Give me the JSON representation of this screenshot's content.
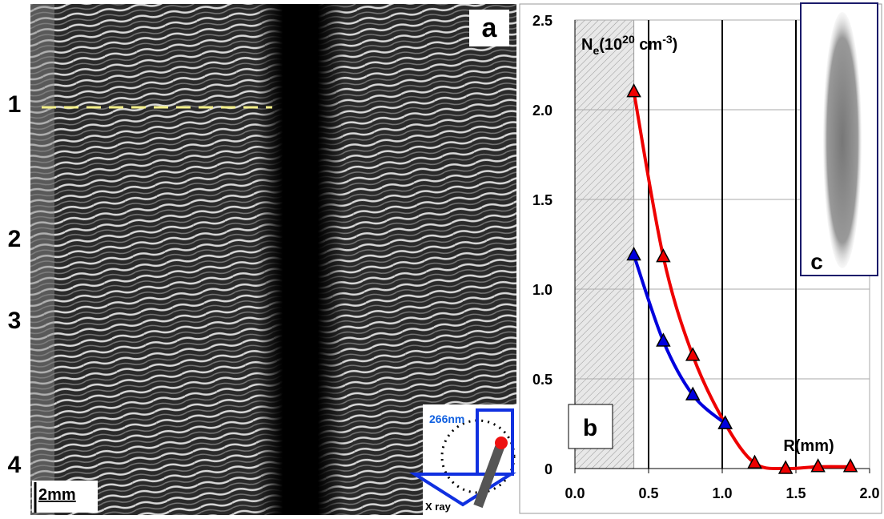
{
  "panel_a": {
    "label": "a",
    "row_labels": [
      "1",
      "2",
      "3",
      "4"
    ],
    "scale_bar": "2mm"
  },
  "inset_c": {
    "label": "c"
  },
  "diagram": {
    "laser_label": "266nm",
    "xray_label": "X ray"
  },
  "chart_data": {
    "type": "line",
    "panel_label": "b",
    "y_label": {
      "symbol": "N",
      "symbol_sub": "e",
      "open": "(10",
      "exp": "20",
      "unit": " cm",
      "unit_exp": "-3",
      "close": ")"
    },
    "x_label": "R(mm)",
    "xlim": [
      0,
      2.0
    ],
    "ylim": [
      0,
      2.5
    ],
    "xticks": [
      {
        "value": 0,
        "label": "0.0"
      },
      0.5,
      {
        "value": 1,
        "label": "1.0"
      },
      1.5,
      {
        "value": 2,
        "label": "2.0"
      }
    ],
    "yticks": [
      0,
      0.5,
      {
        "value": 1,
        "label": "1.0"
      },
      1.5,
      {
        "value": 2,
        "label": "2.0"
      },
      2.5
    ],
    "vertical_lines": [
      0.5,
      1.0,
      1.5
    ],
    "shaded_region": [
      0,
      0.4
    ],
    "grid": true,
    "series": [
      {
        "color": "#ee0000",
        "x": [
          0.4,
          0.6,
          0.8,
          1.02,
          1.22,
          1.43,
          1.65,
          1.87
        ],
        "values": [
          2.1,
          1.18,
          0.63,
          0.25,
          0.03,
          0.0,
          0.01,
          0.01
        ]
      },
      {
        "color": "#0000dd",
        "x": [
          0.4,
          0.6,
          0.8,
          1.02
        ],
        "values": [
          1.19,
          0.71,
          0.41,
          0.25
        ]
      }
    ]
  }
}
